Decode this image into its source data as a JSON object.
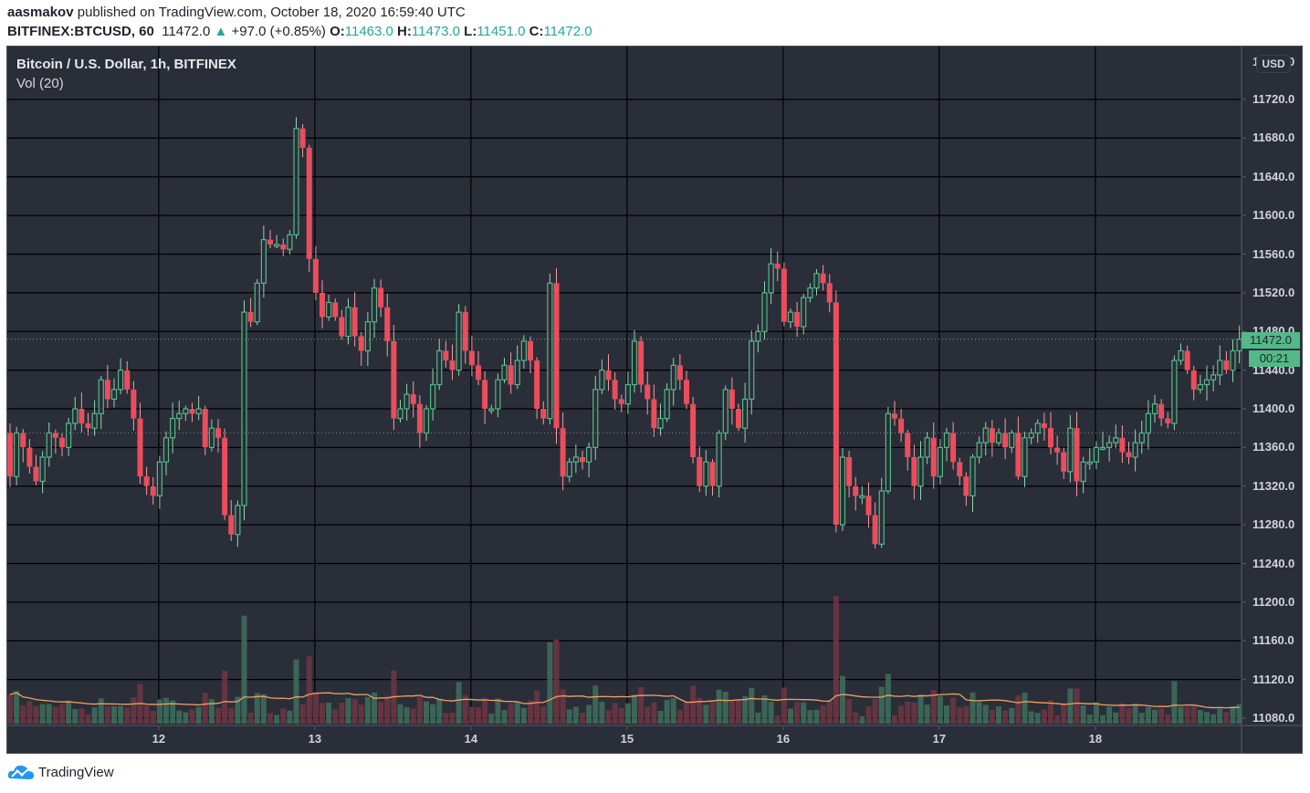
{
  "header": {
    "author": "aasmakov",
    "published_text": "published on TradingView.com, October 18, 2020 16:59:40 UTC",
    "symbol": "BITFINEX:BTCUSD, 60",
    "last": "11472.0",
    "change_arrow": "▲",
    "change": "+97.0 (+0.85%)",
    "open_label": "O:",
    "open": "11463.0",
    "high_label": "H:",
    "high": "11473.0",
    "low_label": "L:",
    "low": "11451.0",
    "close_label": "C:",
    "close": "11472.0"
  },
  "legend": {
    "title": "Bitcoin / U.S. Dollar, 1h, BITFINEX",
    "indicator": "Vol (20)"
  },
  "price_axis": {
    "currency_badge": "USD",
    "current_price": "11472.0",
    "countdown": "00:21"
  },
  "footer": {
    "brand": "TradingView"
  },
  "colors": {
    "background": "#2a2e39",
    "grid": "#000000",
    "up": "#53b987",
    "down": "#eb4d5c",
    "vol_up": "#3d6b5a",
    "vol_down": "#6b3542",
    "vol_ma": "#f0a060",
    "price_line": "#53b987"
  },
  "chart_data": {
    "type": "candlestick",
    "title": "Bitcoin / U.S. Dollar, 1h, BITFINEX",
    "xlabel": "",
    "ylabel": "USD",
    "ylim": [
      11060,
      11760
    ],
    "y_ticks": [
      11080,
      11120,
      11160,
      11200,
      11240,
      11280,
      11320,
      11360,
      11400,
      11440,
      11480,
      11520,
      11560,
      11600,
      11640,
      11680,
      11720
    ],
    "x_ticks": [
      {
        "label": "12",
        "index": 23
      },
      {
        "label": "13",
        "index": 47
      },
      {
        "label": "14",
        "index": 71
      },
      {
        "label": "15",
        "index": 95
      },
      {
        "label": "16",
        "index": 119
      },
      {
        "label": "17",
        "index": 143
      },
      {
        "label": "18",
        "index": 167
      }
    ],
    "grid": true,
    "last_price": 11472.0,
    "prev_close_line": 11375,
    "volume_indicator": "Vol (20)",
    "candles_close_path": [
      11330,
      11375,
      11360,
      11340,
      11325,
      11350,
      11375,
      11370,
      11360,
      11385,
      11400,
      11385,
      11380,
      11395,
      11430,
      11410,
      11420,
      11440,
      11420,
      11390,
      11330,
      11320,
      11310,
      11345,
      11370,
      11390,
      11395,
      11400,
      11395,
      11400,
      11360,
      11380,
      11370,
      11290,
      11270,
      11300,
      11500,
      11490,
      11530,
      11575,
      11570,
      11570,
      11565,
      11580,
      11690,
      11670,
      11555,
      11520,
      11495,
      11510,
      11495,
      11475,
      11505,
      11475,
      11460,
      11490,
      11525,
      11505,
      11470,
      11390,
      11400,
      11415,
      11405,
      11375,
      11400,
      11425,
      11460,
      11450,
      11440,
      11500,
      11460,
      11445,
      11430,
      11400,
      11400,
      11430,
      11445,
      11425,
      11450,
      11470,
      11450,
      11400,
      11390,
      11530,
      11380,
      11330,
      11345,
      11350,
      11345,
      11360,
      11420,
      11440,
      11430,
      11410,
      11405,
      11425,
      11470,
      11425,
      11410,
      11380,
      11390,
      11420,
      11445,
      11430,
      11405,
      11350,
      11320,
      11345,
      11320,
      11375,
      11420,
      11400,
      11380,
      11410,
      11470,
      11480,
      11520,
      11550,
      11545,
      11490,
      11500,
      11485,
      11515,
      11525,
      11540,
      11530,
      11510,
      11280,
      11350,
      11320,
      11310,
      11310,
      11290,
      11260,
      11315,
      11395,
      11390,
      11375,
      11350,
      11320,
      11350,
      11370,
      11330,
      11360,
      11375,
      11345,
      11330,
      11310,
      11350,
      11365,
      11380,
      11365,
      11375,
      11360,
      11375,
      11330,
      11370,
      11375,
      11385,
      11380,
      11360,
      11355,
      11335,
      11380,
      11325,
      11345,
      11345,
      11360,
      11360,
      11365,
      11370,
      11355,
      11350,
      11365,
      11375,
      11395,
      11405,
      11390,
      11385,
      11450,
      11460,
      11440,
      11420,
      11425,
      11430,
      11435,
      11450,
      11440,
      11460,
      11472
    ]
  }
}
